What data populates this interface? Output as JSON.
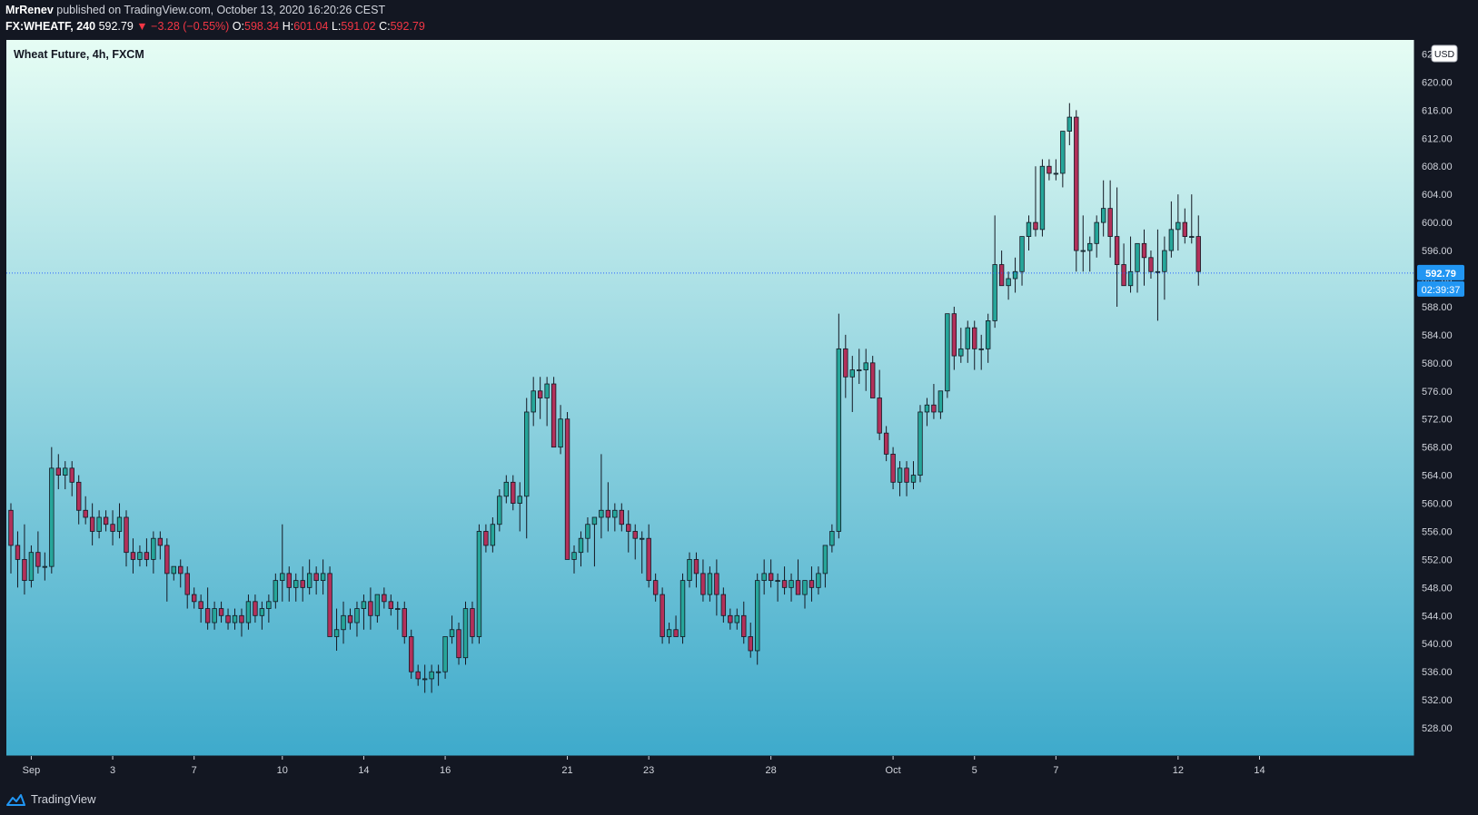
{
  "header": {
    "author": "MrRenev",
    "published_text": "published on TradingView.com, October 13, 2020 16:20:26 CEST",
    "symbol": "FX:WHEATF, 240",
    "last": "592.79",
    "change": "▼ −3.28 (−0.55%)",
    "o_label": "O:",
    "o": "598.34",
    "h_label": "H:",
    "h": "601.04",
    "l_label": "L:",
    "l": "591.02",
    "c_label": "C:",
    "c": "592.79"
  },
  "chart_title": "Wheat Future, 4h, FXCM",
  "currency": "USD",
  "price_tag": "592.79",
  "countdown": "02:39:37",
  "footer_brand": "TradingView",
  "colors": {
    "up": "#26a69a",
    "down": "#b2315a",
    "wick": "#131722",
    "bg_top": "#e6fdf4",
    "bg_bottom": "#3eaacb",
    "price_line": "#2962ff",
    "tag": "#2196f3",
    "axis_bg": "#131722",
    "axis_text": "#d1d4dc"
  },
  "chart_data": {
    "type": "candlestick",
    "interval": "4h",
    "ylim": [
      524,
      626
    ],
    "y_ticks": [
      528,
      532,
      536,
      540,
      544,
      548,
      552,
      556,
      560,
      564,
      568,
      572,
      576,
      580,
      584,
      588,
      592,
      596,
      600,
      604,
      608,
      612,
      616,
      620
    ],
    "y_top_partial_label": "624.00",
    "x_labels": [
      {
        "label": "Sep",
        "bar": 3
      },
      {
        "label": "3",
        "bar": 15
      },
      {
        "label": "7",
        "bar": 27
      },
      {
        "label": "10",
        "bar": 40
      },
      {
        "label": "14",
        "bar": 52
      },
      {
        "label": "16",
        "bar": 64
      },
      {
        "label": "21",
        "bar": 82
      },
      {
        "label": "23",
        "bar": 94
      },
      {
        "label": "28",
        "bar": 112
      },
      {
        "label": "Oct",
        "bar": 130
      },
      {
        "label": "5",
        "bar": 142
      },
      {
        "label": "7",
        "bar": 154
      },
      {
        "label": "12",
        "bar": 172
      },
      {
        "label": "14",
        "bar": 184
      }
    ],
    "last_price": 592.79,
    "ohlc": [
      [
        559,
        560,
        550,
        554
      ],
      [
        554,
        556,
        548,
        552
      ],
      [
        552,
        557,
        547,
        549
      ],
      [
        549,
        554,
        548,
        553
      ],
      [
        553,
        556,
        550,
        551
      ],
      [
        551,
        553,
        549,
        551
      ],
      [
        551,
        568,
        550,
        565
      ],
      [
        565,
        567,
        562,
        564
      ],
      [
        564,
        566,
        562,
        565
      ],
      [
        565,
        566,
        561,
        563
      ],
      [
        563,
        564,
        557,
        559
      ],
      [
        559,
        561,
        557,
        558
      ],
      [
        558,
        560,
        554,
        556
      ],
      [
        556,
        559,
        555,
        558
      ],
      [
        558,
        559,
        556,
        557
      ],
      [
        557,
        559,
        554,
        556
      ],
      [
        556,
        560,
        555,
        558
      ],
      [
        558,
        559,
        551,
        553
      ],
      [
        553,
        555,
        550,
        552
      ],
      [
        552,
        554,
        551,
        553
      ],
      [
        553,
        555,
        551,
        552
      ],
      [
        552,
        556,
        550,
        555
      ],
      [
        555,
        556,
        552,
        554
      ],
      [
        554,
        555,
        546,
        550
      ],
      [
        550,
        551,
        549,
        551
      ],
      [
        551,
        552,
        548,
        550
      ],
      [
        550,
        551,
        545,
        547
      ],
      [
        547,
        548,
        545,
        546
      ],
      [
        546,
        547,
        543,
        545
      ],
      [
        545,
        548,
        542,
        543
      ],
      [
        543,
        546,
        542,
        545
      ],
      [
        545,
        546,
        543,
        544
      ],
      [
        544,
        545,
        542,
        543
      ],
      [
        543,
        545,
        542,
        544
      ],
      [
        544,
        545,
        541,
        543
      ],
      [
        543,
        547,
        542,
        546
      ],
      [
        546,
        547,
        543,
        544
      ],
      [
        544,
        546,
        542,
        545
      ],
      [
        545,
        547,
        543,
        546
      ],
      [
        546,
        550,
        545,
        549
      ],
      [
        549,
        557,
        546,
        550
      ],
      [
        550,
        551,
        546,
        548
      ],
      [
        548,
        550,
        546,
        549
      ],
      [
        549,
        551,
        546,
        548
      ],
      [
        548,
        552,
        547,
        550
      ],
      [
        550,
        551,
        547,
        549
      ],
      [
        549,
        552,
        547,
        550
      ],
      [
        550,
        551,
        541,
        541
      ],
      [
        541,
        545,
        539,
        542
      ],
      [
        542,
        546,
        540,
        544
      ],
      [
        544,
        545,
        542,
        543
      ],
      [
        543,
        546,
        541,
        545
      ],
      [
        545,
        547,
        542,
        546
      ],
      [
        546,
        548,
        542,
        544
      ],
      [
        544,
        547,
        543,
        547
      ],
      [
        547,
        548,
        545,
        546
      ],
      [
        546,
        547,
        544,
        545
      ],
      [
        545,
        546,
        542,
        545
      ],
      [
        545,
        546,
        540,
        541
      ],
      [
        541,
        542,
        535,
        536
      ],
      [
        536,
        537,
        534,
        535
      ],
      [
        535,
        537,
        533,
        535
      ],
      [
        535,
        537,
        533,
        536
      ],
      [
        536,
        537,
        534,
        536
      ],
      [
        536,
        541,
        535,
        541
      ],
      [
        541,
        544,
        540,
        542
      ],
      [
        542,
        543,
        537,
        538
      ],
      [
        538,
        546,
        537,
        545
      ],
      [
        545,
        546,
        540,
        541
      ],
      [
        541,
        557,
        540,
        556
      ],
      [
        556,
        557,
        553,
        554
      ],
      [
        554,
        558,
        553,
        557
      ],
      [
        557,
        562,
        556,
        561
      ],
      [
        561,
        564,
        560,
        563
      ],
      [
        563,
        564,
        559,
        560
      ],
      [
        560,
        563,
        556,
        561
      ],
      [
        561,
        575,
        555,
        573
      ],
      [
        573,
        578,
        571,
        576
      ],
      [
        576,
        578,
        572,
        575
      ],
      [
        575,
        578,
        571,
        577
      ],
      [
        577,
        578,
        568,
        568
      ],
      [
        568,
        574,
        567,
        572
      ],
      [
        572,
        573,
        552,
        552
      ],
      [
        552,
        554,
        550,
        553
      ],
      [
        553,
        556,
        551,
        555
      ],
      [
        555,
        558,
        553,
        557
      ],
      [
        557,
        558,
        551,
        558
      ],
      [
        558,
        567,
        555,
        559
      ],
      [
        559,
        563,
        556,
        558
      ],
      [
        558,
        560,
        556,
        559
      ],
      [
        559,
        560,
        556,
        557
      ],
      [
        557,
        559,
        553,
        556
      ],
      [
        556,
        557,
        552,
        555
      ],
      [
        555,
        556,
        550,
        555
      ],
      [
        555,
        557,
        548,
        549
      ],
      [
        549,
        550,
        546,
        547
      ],
      [
        547,
        548,
        540,
        541
      ],
      [
        541,
        543,
        540,
        542
      ],
      [
        542,
        544,
        541,
        541
      ],
      [
        541,
        550,
        540,
        549
      ],
      [
        549,
        553,
        548,
        552
      ],
      [
        552,
        553,
        548,
        550
      ],
      [
        550,
        552,
        546,
        547
      ],
      [
        547,
        551,
        546,
        550
      ],
      [
        550,
        552,
        544,
        547
      ],
      [
        547,
        548,
        543,
        544
      ],
      [
        544,
        545,
        542,
        543
      ],
      [
        543,
        545,
        542,
        544
      ],
      [
        544,
        546,
        540,
        541
      ],
      [
        541,
        543,
        538,
        539
      ],
      [
        539,
        550,
        537,
        549
      ],
      [
        549,
        552,
        547,
        550
      ],
      [
        550,
        552,
        548,
        549
      ],
      [
        549,
        550,
        546,
        549
      ],
      [
        549,
        551,
        547,
        548
      ],
      [
        548,
        550,
        546,
        549
      ],
      [
        549,
        552,
        547,
        547
      ],
      [
        547,
        549,
        545,
        549
      ],
      [
        549,
        551,
        546,
        548
      ],
      [
        548,
        551,
        547,
        550
      ],
      [
        550,
        554,
        548,
        554
      ],
      [
        554,
        557,
        553,
        556
      ],
      [
        556,
        587,
        555,
        582
      ],
      [
        582,
        584,
        575,
        578
      ],
      [
        578,
        581,
        573,
        579
      ],
      [
        579,
        582,
        577,
        579
      ],
      [
        579,
        582,
        576,
        580
      ],
      [
        580,
        581,
        575,
        575
      ],
      [
        575,
        579,
        569,
        570
      ],
      [
        570,
        571,
        566,
        567
      ],
      [
        567,
        568,
        562,
        563
      ],
      [
        563,
        566,
        561,
        565
      ],
      [
        565,
        566,
        561,
        563
      ],
      [
        563,
        566,
        562,
        564
      ],
      [
        564,
        574,
        563,
        573
      ],
      [
        573,
        575,
        571,
        574
      ],
      [
        574,
        577,
        572,
        573
      ],
      [
        573,
        576,
        572,
        576
      ],
      [
        576,
        587,
        575,
        587
      ],
      [
        587,
        588,
        579,
        581
      ],
      [
        581,
        585,
        580,
        582
      ],
      [
        582,
        586,
        580,
        585
      ],
      [
        585,
        586,
        579,
        582
      ],
      [
        582,
        584,
        579,
        582
      ],
      [
        582,
        587,
        580,
        586
      ],
      [
        586,
        601,
        585,
        594
      ],
      [
        594,
        596,
        591,
        591
      ],
      [
        591,
        593,
        589,
        592
      ],
      [
        592,
        595,
        590,
        593
      ],
      [
        593,
        598,
        591,
        598
      ],
      [
        598,
        601,
        596,
        600
      ],
      [
        600,
        608,
        598,
        599
      ],
      [
        599,
        609,
        598,
        608
      ],
      [
        608,
        609,
        606,
        607
      ],
      [
        607,
        609,
        606,
        607
      ],
      [
        607,
        613,
        605,
        613
      ],
      [
        613,
        617,
        611,
        615
      ],
      [
        615,
        616,
        593,
        596
      ],
      [
        596,
        601,
        593,
        596
      ],
      [
        596,
        598,
        593,
        597
      ],
      [
        597,
        601,
        595,
        600
      ],
      [
        600,
        606,
        598,
        602
      ],
      [
        602,
        606,
        595,
        598
      ],
      [
        598,
        605,
        588,
        594
      ],
      [
        594,
        597,
        591,
        591
      ],
      [
        591,
        598,
        590,
        593
      ],
      [
        593,
        597,
        590,
        597
      ],
      [
        597,
        599,
        591,
        595
      ],
      [
        595,
        596,
        592,
        593
      ],
      [
        593,
        599,
        586,
        593
      ],
      [
        593,
        598,
        589,
        596
      ],
      [
        596,
        603,
        595,
        599
      ],
      [
        599,
        604,
        596,
        600
      ],
      [
        600,
        602,
        597,
        598
      ],
      [
        598,
        604,
        597,
        598
      ],
      [
        598,
        601,
        591,
        593
      ]
    ]
  }
}
